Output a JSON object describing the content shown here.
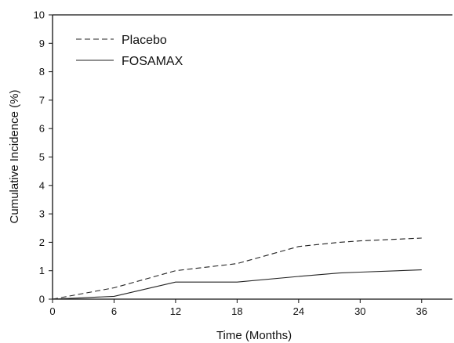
{
  "chart_data": {
    "type": "line",
    "title": "",
    "xlabel": "Time (Months)",
    "ylabel": "Cumulative Incidence (%)",
    "xlim": [
      0,
      39
    ],
    "ylim": [
      0,
      10
    ],
    "xticks": [
      0,
      6,
      12,
      18,
      24,
      30,
      36
    ],
    "yticks": [
      0,
      1,
      2,
      3,
      4,
      5,
      6,
      7,
      8,
      9,
      10
    ],
    "grid": false,
    "legend_position": "top-left",
    "series": [
      {
        "name": "Placebo",
        "line_style": "dashed",
        "color": "#222222",
        "x": [
          0,
          6,
          12,
          18,
          24,
          28,
          30,
          36
        ],
        "y": [
          0,
          0.4,
          1.0,
          1.25,
          1.85,
          2.0,
          2.05,
          2.15
        ]
      },
      {
        "name": "FOSAMAX",
        "line_style": "solid",
        "color": "#222222",
        "x": [
          0,
          6,
          12,
          18,
          24,
          28,
          30,
          36
        ],
        "y": [
          0,
          0.1,
          0.6,
          0.6,
          0.8,
          0.92,
          0.95,
          1.03
        ]
      }
    ]
  }
}
